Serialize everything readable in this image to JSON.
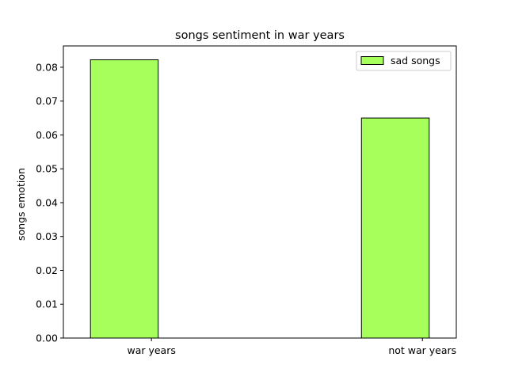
{
  "chart_data": {
    "type": "bar",
    "title": "songs sentiment in war years",
    "xlabel": "",
    "ylabel": "songs emotion",
    "categories": [
      "war years",
      "not war years"
    ],
    "series": [
      {
        "name": "sad songs",
        "values": [
          0.0822,
          0.065
        ],
        "color": "#a6ff5a",
        "edgecolor": "#000000"
      }
    ],
    "ylim": [
      0,
      0.0863
    ],
    "yticks": [
      0.0,
      0.01,
      0.02,
      0.03,
      0.04,
      0.05,
      0.06,
      0.07,
      0.08
    ],
    "ytick_labels": [
      "0.00",
      "0.01",
      "0.02",
      "0.03",
      "0.04",
      "0.05",
      "0.06",
      "0.07",
      "0.08"
    ],
    "grid": false,
    "legend_position": "upper right"
  }
}
